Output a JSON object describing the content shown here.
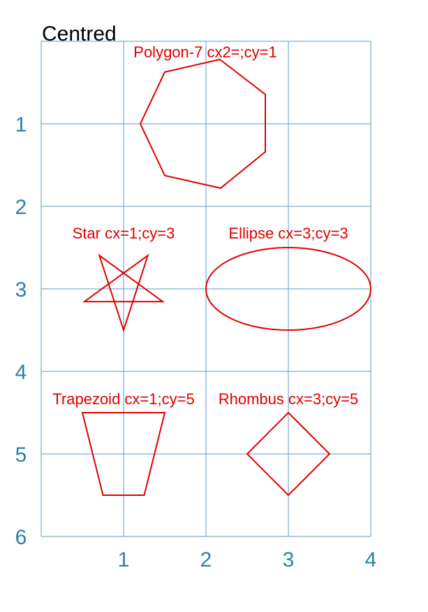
{
  "title": "Centred",
  "grid": {
    "color": "#5b9bc4",
    "x_range": [
      0,
      4
    ],
    "y_range": [
      0,
      6
    ]
  },
  "axes": {
    "x_ticks": [
      "1",
      "2",
      "3",
      "4"
    ],
    "y_ticks": [
      "1",
      "2",
      "3",
      "4",
      "5",
      "6"
    ],
    "label_color": "#2e7fa8"
  },
  "shape_color": "#e00000",
  "shapes": [
    {
      "id": "polygon7",
      "label": "Polygon-7 cx2=;cy=1",
      "type": "polygon",
      "sides": 7,
      "cx": 2,
      "cy": 1,
      "r": 0.77
    },
    {
      "id": "star",
      "label": "Star cx=1;cy=3",
      "type": "star",
      "points": 5,
      "cx": 1,
      "cy": 3,
      "r": 0.5
    },
    {
      "id": "ellipse",
      "label": "Ellipse cx=3;cy=3",
      "type": "ellipse",
      "cx": 3,
      "cy": 3,
      "rx": 1,
      "ry": 0.5
    },
    {
      "id": "trapezoid",
      "label": "Trapezoid cx=1;cy=5",
      "type": "trapezoid",
      "cx": 1,
      "cy": 5
    },
    {
      "id": "rhombus",
      "label": "Rhombus cx=3;cy=5",
      "type": "rhombus",
      "cx": 3,
      "cy": 5
    }
  ]
}
